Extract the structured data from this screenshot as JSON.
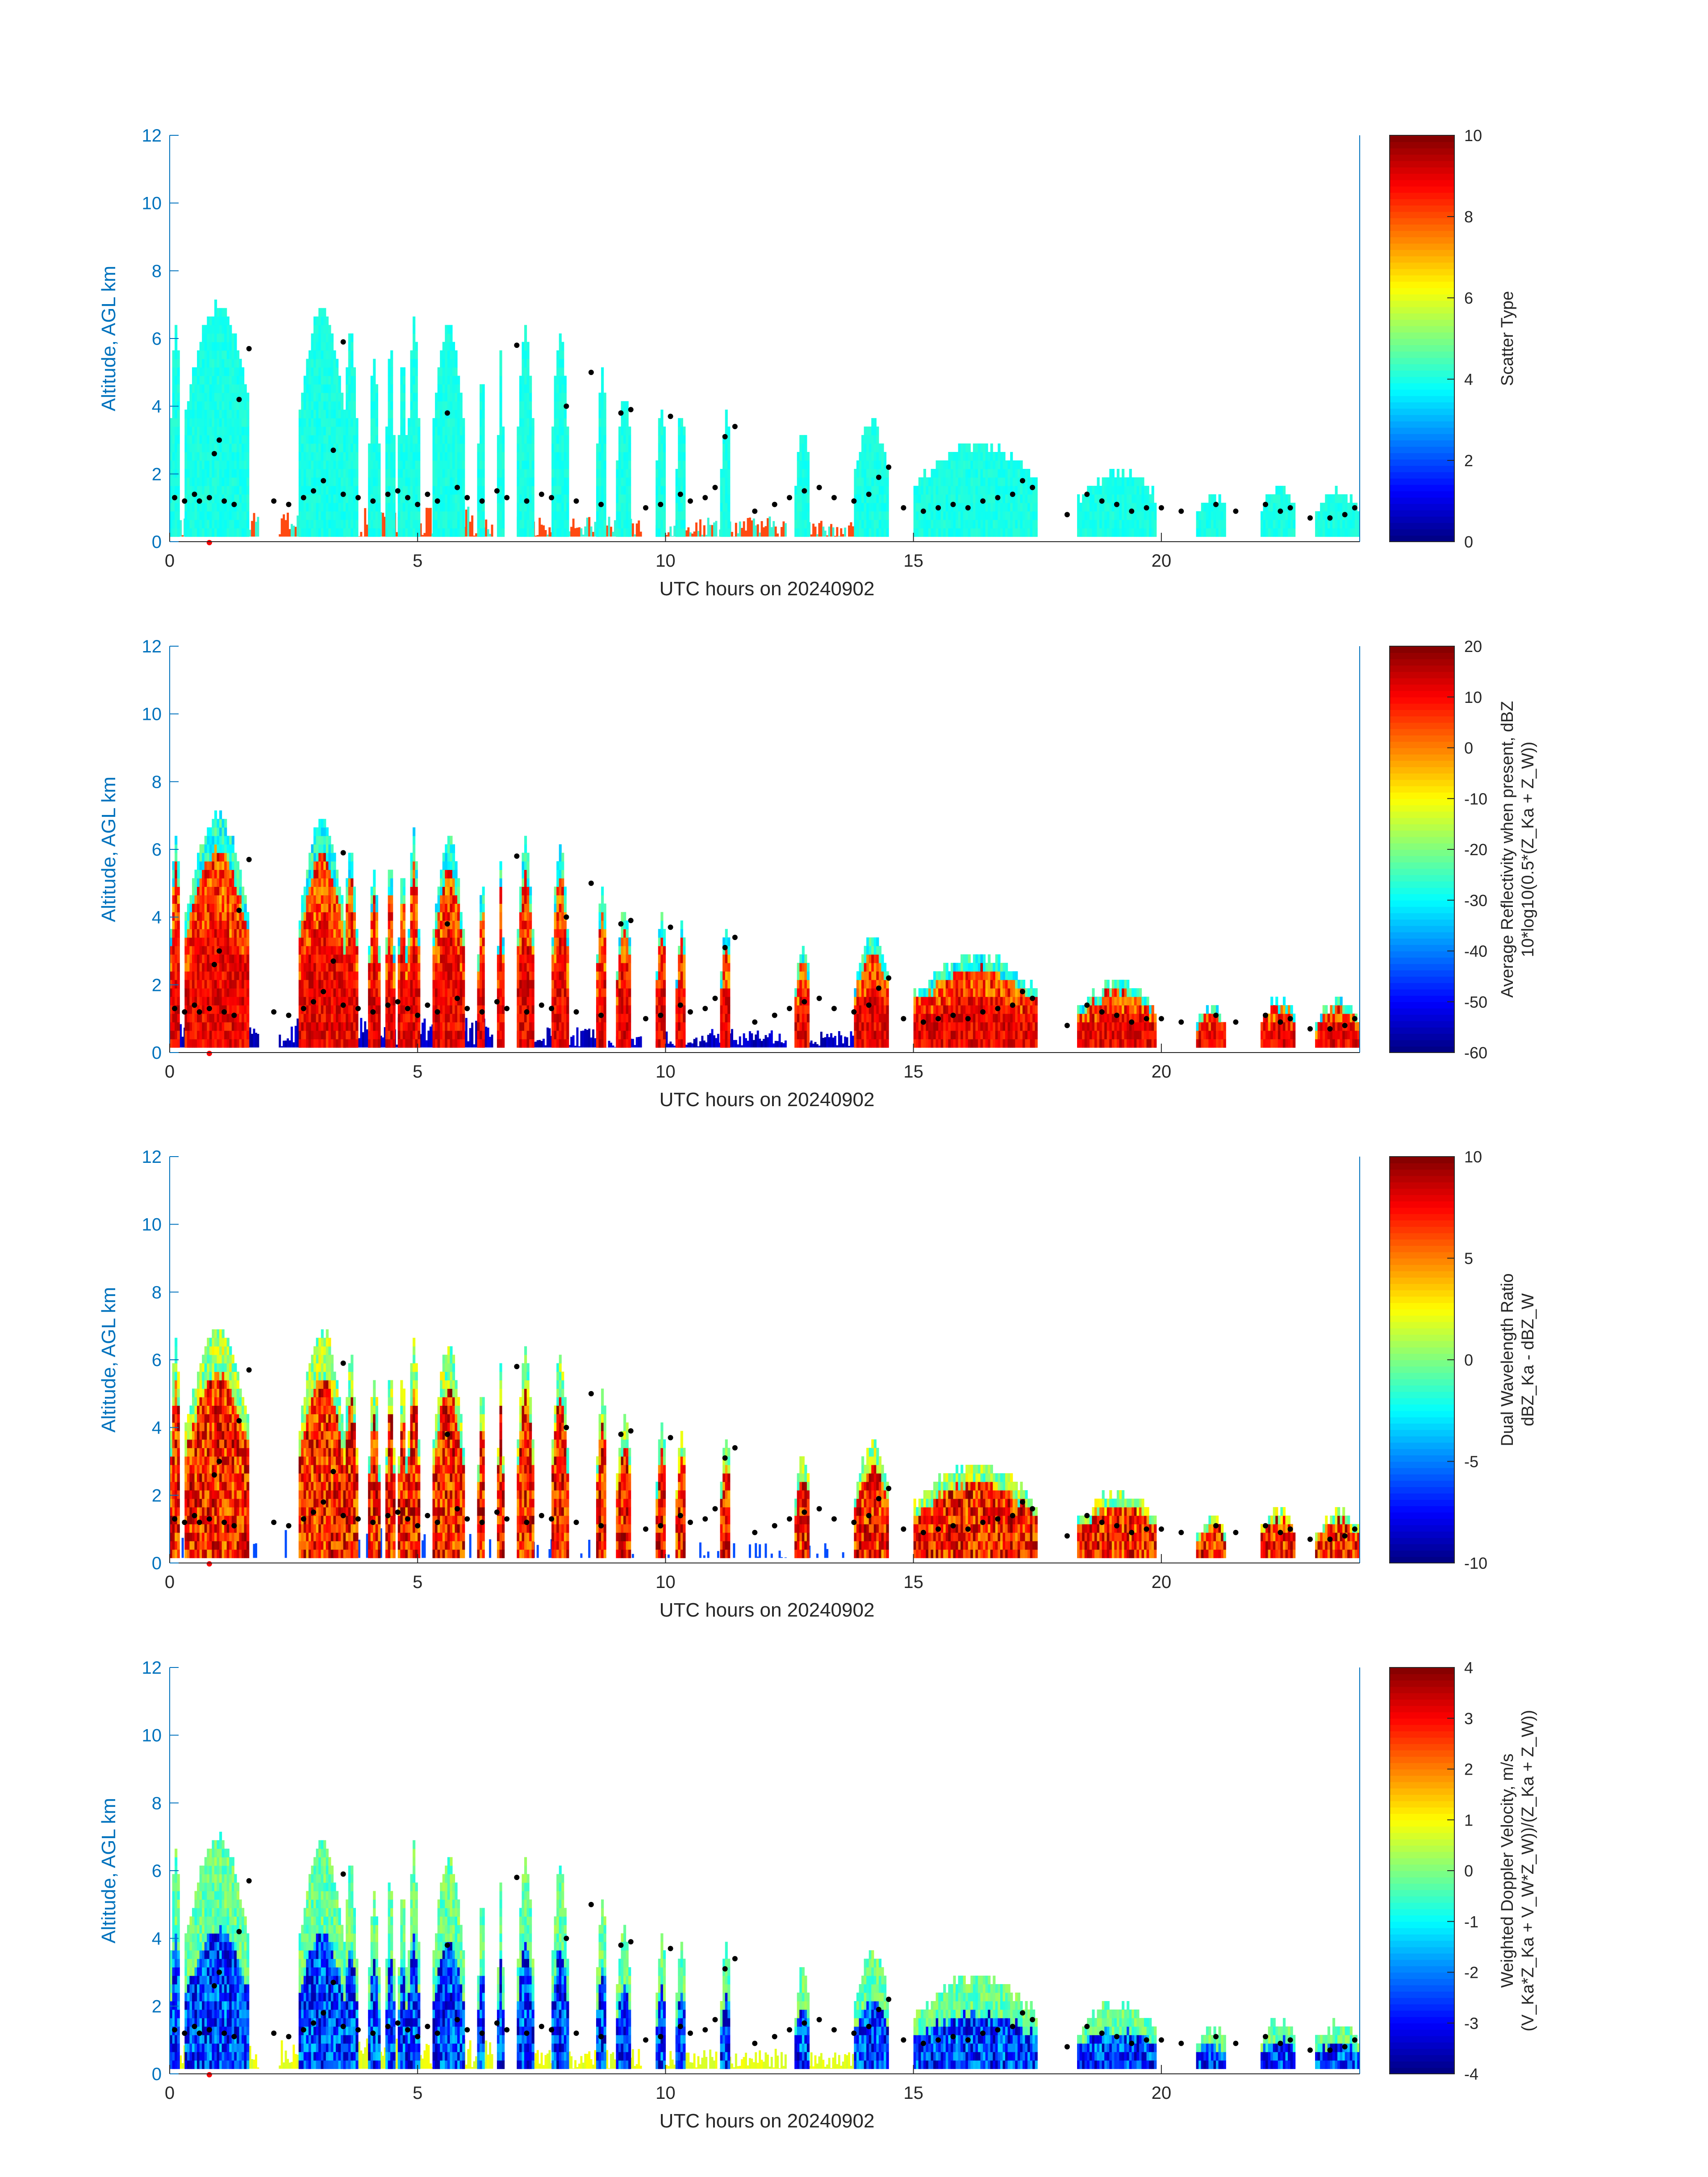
{
  "figure": {
    "panels": 4,
    "x_axis_label": "UTC hours on 20240902",
    "y_axis_label": "Altitude, AGL km",
    "axis_color": "#0072BD",
    "marker_color": "#000000",
    "red_marker_color": "#FF0000",
    "colormap": "jet"
  },
  "chart_data": [
    {
      "type": "heatmap",
      "panel": "scatter-type",
      "xlabel": "UTC hours on 20240902",
      "ylabel": "Altitude, AGL km",
      "xlim": [
        0,
        24
      ],
      "ylim": [
        0,
        12
      ],
      "xticks": [
        "0",
        "5",
        "10",
        "15",
        "20"
      ],
      "yticks": [
        "0",
        "2",
        "4",
        "6",
        "8",
        "10",
        "12"
      ],
      "colorbar": {
        "label_lines": [
          "Scatter Type"
        ],
        "min": 0,
        "max": 10,
        "ticks": [
          "0",
          "2",
          "4",
          "6",
          "8",
          "10"
        ]
      }
    },
    {
      "type": "heatmap",
      "panel": "average-reflectivity",
      "xlabel": "UTC hours on 20240902",
      "ylabel": "Altitude, AGL km",
      "xlim": [
        0,
        24
      ],
      "ylim": [
        0,
        12
      ],
      "xticks": [
        "0",
        "5",
        "10",
        "15",
        "20"
      ],
      "yticks": [
        "0",
        "2",
        "4",
        "6",
        "8",
        "10",
        "12"
      ],
      "colorbar": {
        "label_lines": [
          "Average Reflectivity when present, dBZ",
          "10*log10(0.5*(Z_Ka + Z_W))"
        ],
        "min": -60,
        "max": 20,
        "ticks": [
          "-60",
          "-50",
          "-40",
          "-30",
          "-20",
          "-10",
          "0",
          "10",
          "20"
        ]
      }
    },
    {
      "type": "heatmap",
      "panel": "dual-wavelength-ratio",
      "xlabel": "UTC hours on 20240902",
      "ylabel": "Altitude, AGL km",
      "xlim": [
        0,
        24
      ],
      "ylim": [
        0,
        12
      ],
      "xticks": [
        "0",
        "5",
        "10",
        "15",
        "20"
      ],
      "yticks": [
        "0",
        "2",
        "4",
        "6",
        "8",
        "10",
        "12"
      ],
      "colorbar": {
        "label_lines": [
          "Dual Wavelength Ratio",
          "dBZ_Ka - dBZ_W"
        ],
        "min": -10,
        "max": 10,
        "ticks": [
          "-10",
          "-5",
          "0",
          "5",
          "10"
        ]
      }
    },
    {
      "type": "heatmap",
      "panel": "weighted-doppler-velocity",
      "xlabel": "UTC hours on 20240902",
      "ylabel": "Altitude, AGL km",
      "xlim": [
        0,
        24
      ],
      "ylim": [
        0,
        12
      ],
      "xticks": [
        "0",
        "5",
        "10",
        "15",
        "20"
      ],
      "yticks": [
        "0",
        "2",
        "4",
        "6",
        "8",
        "10",
        "12"
      ],
      "colorbar": {
        "label_lines": [
          "Weighted Doppler Velocity, m/s",
          "(V_Ka*Z_Ka + V_W*Z_W))/(Z_Ka + Z_W))"
        ],
        "min": -4,
        "max": 4,
        "ticks": [
          "-4",
          "-3",
          "-2",
          "-1",
          "0",
          "1",
          "2",
          "3",
          "4"
        ]
      }
    }
  ],
  "cloud_columns": [
    {
      "x0": 0.0,
      "x1": 0.2,
      "top": 6.3
    },
    {
      "x0": 0.3,
      "x1": 1.6,
      "top": 6.7
    },
    {
      "x0": 2.6,
      "x1": 3.5,
      "top": 6.6
    },
    {
      "x0": 3.5,
      "x1": 3.75,
      "top": 5.9
    },
    {
      "x0": 4.0,
      "x1": 4.2,
      "top": 5.2
    },
    {
      "x0": 4.35,
      "x1": 4.5,
      "top": 5.5
    },
    {
      "x0": 4.6,
      "x1": 4.75,
      "top": 5.2
    },
    {
      "x0": 4.8,
      "x1": 5.0,
      "top": 6.4
    },
    {
      "x0": 5.3,
      "x1": 5.9,
      "top": 6.1
    },
    {
      "x0": 6.2,
      "x1": 6.35,
      "top": 4.8
    },
    {
      "x0": 6.6,
      "x1": 6.7,
      "top": 5.5
    },
    {
      "x0": 7.0,
      "x1": 7.3,
      "top": 6.0
    },
    {
      "x0": 7.7,
      "x1": 8.0,
      "top": 5.9
    },
    {
      "x0": 8.6,
      "x1": 8.8,
      "top": 4.8
    },
    {
      "x0": 9.0,
      "x1": 9.3,
      "top": 4.0
    },
    {
      "x0": 9.8,
      "x1": 10.0,
      "top": 3.8
    },
    {
      "x0": 10.2,
      "x1": 10.4,
      "top": 3.6
    },
    {
      "x0": 11.1,
      "x1": 11.3,
      "top": 3.5
    },
    {
      "x0": 12.6,
      "x1": 12.9,
      "top": 2.9
    },
    {
      "x0": 13.8,
      "x1": 14.5,
      "top": 3.2
    },
    {
      "x0": 15.0,
      "x1": 17.5,
      "top": 2.6
    },
    {
      "x0": 18.3,
      "x1": 19.9,
      "top": 1.8
    },
    {
      "x0": 20.7,
      "x1": 21.3,
      "top": 1.1
    },
    {
      "x0": 22.0,
      "x1": 22.7,
      "top": 1.3
    },
    {
      "x0": 23.1,
      "x1": 24.0,
      "top": 1.2
    }
  ],
  "low_clutter": [
    {
      "x0": 0.0,
      "x1": 1.8,
      "top": 0.7
    },
    {
      "x0": 2.2,
      "x1": 6.5,
      "top": 0.9
    },
    {
      "x0": 7.0,
      "x1": 9.5,
      "top": 0.6
    },
    {
      "x0": 9.8,
      "x1": 12.4,
      "top": 0.6
    },
    {
      "x0": 12.8,
      "x1": 14.4,
      "top": 0.5
    }
  ],
  "cloud_base_points": [
    [
      0.1,
      1.3
    ],
    [
      0.3,
      1.2
    ],
    [
      0.5,
      1.4
    ],
    [
      0.6,
      1.2
    ],
    [
      0.8,
      1.3
    ],
    [
      0.9,
      2.6
    ],
    [
      1.0,
      3.0
    ],
    [
      1.1,
      1.2
    ],
    [
      1.3,
      1.1
    ],
    [
      1.4,
      4.2
    ],
    [
      1.6,
      5.7
    ],
    [
      2.1,
      1.2
    ],
    [
      2.4,
      1.1
    ],
    [
      2.7,
      1.3
    ],
    [
      2.9,
      1.5
    ],
    [
      3.1,
      1.8
    ],
    [
      3.3,
      2.7
    ],
    [
      3.5,
      1.4
    ],
    [
      3.5,
      5.9
    ],
    [
      3.8,
      1.3
    ],
    [
      4.1,
      1.2
    ],
    [
      4.4,
      1.4
    ],
    [
      4.6,
      1.5
    ],
    [
      4.8,
      1.3
    ],
    [
      5.0,
      1.1
    ],
    [
      5.2,
      1.4
    ],
    [
      5.4,
      1.2
    ],
    [
      5.6,
      3.8
    ],
    [
      5.8,
      1.6
    ],
    [
      6.0,
      1.3
    ],
    [
      6.3,
      1.2
    ],
    [
      6.6,
      1.5
    ],
    [
      6.8,
      1.3
    ],
    [
      7.0,
      5.8
    ],
    [
      7.2,
      1.2
    ],
    [
      7.5,
      1.4
    ],
    [
      7.7,
      1.3
    ],
    [
      8.0,
      4.0
    ],
    [
      8.2,
      1.2
    ],
    [
      8.5,
      5.0
    ],
    [
      8.7,
      1.1
    ],
    [
      9.1,
      3.8
    ],
    [
      9.3,
      3.9
    ],
    [
      9.6,
      1.0
    ],
    [
      9.9,
      1.1
    ],
    [
      10.1,
      3.7
    ],
    [
      10.3,
      1.4
    ],
    [
      10.5,
      1.2
    ],
    [
      10.8,
      1.3
    ],
    [
      11.0,
      1.6
    ],
    [
      11.2,
      3.1
    ],
    [
      11.4,
      3.4
    ],
    [
      11.8,
      0.9
    ],
    [
      12.2,
      1.1
    ],
    [
      12.5,
      1.3
    ],
    [
      12.8,
      1.5
    ],
    [
      13.1,
      1.6
    ],
    [
      13.4,
      1.3
    ],
    [
      13.8,
      1.2
    ],
    [
      14.1,
      1.4
    ],
    [
      14.3,
      1.9
    ],
    [
      14.5,
      2.2
    ],
    [
      14.8,
      1.0
    ],
    [
      15.2,
      0.9
    ],
    [
      15.5,
      1.0
    ],
    [
      15.8,
      1.1
    ],
    [
      16.1,
      1.0
    ],
    [
      16.4,
      1.2
    ],
    [
      16.7,
      1.3
    ],
    [
      17.0,
      1.4
    ],
    [
      17.2,
      1.8
    ],
    [
      17.4,
      1.6
    ],
    [
      18.1,
      0.8
    ],
    [
      18.5,
      1.4
    ],
    [
      18.8,
      1.2
    ],
    [
      19.1,
      1.1
    ],
    [
      19.4,
      0.9
    ],
    [
      19.7,
      1.0
    ],
    [
      20.0,
      1.0
    ],
    [
      20.4,
      0.9
    ],
    [
      21.1,
      1.1
    ],
    [
      21.5,
      0.9
    ],
    [
      22.1,
      1.1
    ],
    [
      22.4,
      0.9
    ],
    [
      22.6,
      1.0
    ],
    [
      23.0,
      0.7
    ],
    [
      23.4,
      0.7
    ],
    [
      23.7,
      0.8
    ],
    [
      23.9,
      1.0
    ]
  ],
  "red_marker_time": 0.8
}
